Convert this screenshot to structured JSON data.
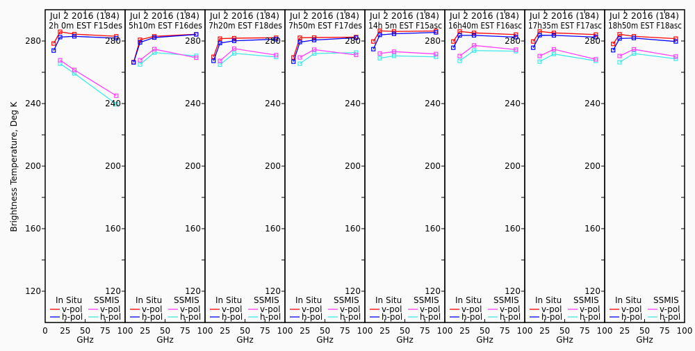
{
  "chart_data": {
    "type": "line",
    "ylabel": "Brightness Temperature, Deg K",
    "xlabel": "GHz",
    "ylim": [
      100,
      300
    ],
    "xlim": [
      0,
      100
    ],
    "yticks": [
      "120",
      "160",
      "200",
      "240",
      "280"
    ],
    "xticks": [
      "0",
      "25",
      "50",
      "75",
      "100"
    ],
    "legend": {
      "insitu_title": "In Situ",
      "ssmis_title": "SSMIS",
      "vpol": "v-pol",
      "hpol": "h-pol",
      "placement": "bottom"
    },
    "colors": {
      "insitu_v": "#ff0000",
      "insitu_h": "#0000ff",
      "ssmis_v": "#ff40ff",
      "ssmis_h": "#40e8e8"
    },
    "insitu_freqs": [
      10.65,
      18.7,
      36.5,
      89
    ],
    "ssmis_freqs": [
      18.7,
      36.5,
      89
    ],
    "panels": [
      {
        "date": "Jul 2 2016 (184)",
        "time": "2h 0m  EST F15des",
        "insitu_v": [
          278.4,
          285.9,
          284.4,
          283.0
        ],
        "insitu_h": [
          273.9,
          282.5,
          283.0,
          281.8
        ],
        "ssmis_v": [
          267.7,
          261.5,
          245.0
        ],
        "ssmis_h": [
          265.5,
          259.3,
          239.6
        ]
      },
      {
        "date": "Jul 2 2016 (184)",
        "time": "5h10m  EST F16des",
        "insitu_v": [
          266.5,
          280.8,
          283.0,
          284.3
        ],
        "insitu_h": [
          266.3,
          279.1,
          282.2,
          284.2
        ],
        "ssmis_v": [
          267.7,
          274.8,
          269.3
        ],
        "ssmis_h": [
          265.0,
          272.6,
          270.5
        ]
      },
      {
        "date": "Jul 2 2016 (184)",
        "time": "7h20m  EST F18des",
        "insitu_v": [
          269.9,
          281.5,
          281.8,
          282.1
        ],
        "insitu_h": [
          267.3,
          278.7,
          280.1,
          281.2
        ],
        "ssmis_v": [
          267.3,
          275.1,
          271.0
        ],
        "ssmis_h": [
          264.9,
          272.1,
          269.8
        ]
      },
      {
        "date": "Jul 2 2016 (184)",
        "time": "7h50m  EST F17des",
        "insitu_v": [
          269.5,
          282.1,
          282.2,
          282.5
        ],
        "insitu_h": [
          266.8,
          279.3,
          280.6,
          282.1
        ],
        "ssmis_v": [
          269.5,
          274.5,
          271.1
        ],
        "ssmis_h": [
          265.5,
          272.0,
          272.6
        ]
      },
      {
        "date": "Jul 2 2016 (184)",
        "time": "14h 5m  EST F15asc",
        "insitu_v": [
          279.7,
          286.5,
          286.1,
          286.4
        ],
        "insitu_h": [
          274.8,
          283.9,
          284.6,
          285.5
        ],
        "ssmis_v": [
          272.0,
          273.2,
          271.7
        ],
        "ssmis_h": [
          269.0,
          270.5,
          269.9
        ]
      },
      {
        "date": "Jul 2 2016 (184)",
        "time": "16h40m  EST F16asc",
        "insitu_v": [
          279.7,
          286.1,
          285.2,
          284.1
        ],
        "insitu_h": [
          275.7,
          283.6,
          283.6,
          282.5
        ],
        "ssmis_v": [
          270.4,
          277.2,
          274.5
        ],
        "ssmis_h": [
          267.3,
          273.9,
          273.5
        ]
      },
      {
        "date": "Jul 2 2016 (184)",
        "time": "17h35m  EST F17asc",
        "insitu_v": [
          279.7,
          286.1,
          285.2,
          284.1
        ],
        "insitu_h": [
          275.7,
          283.7,
          283.6,
          282.5
        ],
        "ssmis_v": [
          270.4,
          274.7,
          268.3
        ],
        "ssmis_h": [
          266.8,
          271.7,
          267.3
        ]
      },
      {
        "date": "Jul 2 2016 (184)",
        "time": "18h50m  EST F18asc",
        "insitu_v": [
          278.1,
          284.3,
          283.0,
          281.5
        ],
        "insitu_h": [
          274.1,
          281.6,
          281.9,
          279.7
        ],
        "ssmis_v": [
          270.4,
          274.7,
          270.1
        ],
        "ssmis_h": [
          266.4,
          272.0,
          268.6
        ]
      }
    ]
  }
}
